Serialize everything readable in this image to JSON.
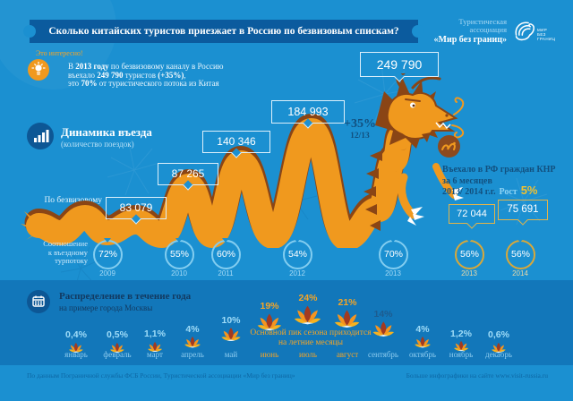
{
  "header": {
    "title": "Сколько китайских туристов приезжает в Россию по безвизовым спискам?",
    "logo": {
      "line1": "Туристическая",
      "line2": "ассоциация",
      "line3": "«Мир без границ»",
      "mark_lines": [
        "МИР",
        "БЕЗ",
        "ГРАНИЦ"
      ]
    }
  },
  "fact": {
    "label": "Это интересно!",
    "lines": [
      [
        {
          "t": "В "
        },
        {
          "t": "2013 году",
          "b": true
        },
        {
          "t": " по безвизовому каналу в Россию"
        }
      ],
      [
        {
          "t": "въехало "
        },
        {
          "t": "249 790",
          "b": true
        },
        {
          "t": " туристов "
        },
        {
          "t": "(+35%)",
          "b": true
        },
        {
          "t": ","
        }
      ],
      [
        {
          "t": "это "
        },
        {
          "t": "70%",
          "b": true
        },
        {
          "t": " от туристического потока из Китая"
        }
      ]
    ]
  },
  "dynamics": {
    "title": "Динамика въезда",
    "subtitle": "(количество поездок)",
    "channel_label_lines": [
      "По безвизовому",
      "каналу"
    ],
    "callouts": [
      {
        "value": "83 079"
      },
      {
        "value": "87 265"
      },
      {
        "value": "140 346"
      },
      {
        "value": "184 993"
      },
      {
        "value": "249 790"
      }
    ],
    "growth": {
      "value": "+35%",
      "period": "12/13"
    }
  },
  "knr": {
    "lines": [
      "Въехало в РФ граждан КНР",
      "за 6 месяцев",
      "2013/ 2014 г.г."
    ],
    "growth_label": "Рост",
    "growth_value": "5%",
    "boxes": [
      {
        "value": "72 044"
      },
      {
        "value": "75 691"
      }
    ]
  },
  "ratio": {
    "label_lines": [
      "Соотношение",
      "к въездному",
      "турпотоку"
    ],
    "items": [
      {
        "percent": "72%",
        "year": "2009",
        "style": "blue"
      },
      {
        "percent": "55%",
        "year": "2010",
        "style": "blue"
      },
      {
        "percent": "60%",
        "year": "2011",
        "style": "blue"
      },
      {
        "percent": "54%",
        "year": "2012",
        "style": "blue"
      },
      {
        "percent": "70%",
        "year": "2013",
        "style": "blue"
      },
      {
        "percent": "56%",
        "year": "2013",
        "style": "yellow"
      },
      {
        "percent": "56%",
        "year": "2014",
        "style": "yellow"
      }
    ]
  },
  "seasonal": {
    "title": "Распределение в течение года",
    "subtitle": "на примере города Москвы",
    "peak_note_lines": [
      "Основной пик сезона приходится",
      "на летние месяцы"
    ],
    "months": [
      {
        "percent": "0,4%",
        "pct": 0.4,
        "month": "январь",
        "style": "normal"
      },
      {
        "percent": "0,5%",
        "pct": 0.5,
        "month": "февраль",
        "style": "normal"
      },
      {
        "percent": "1,1%",
        "pct": 1.1,
        "month": "март",
        "style": "normal"
      },
      {
        "percent": "4%",
        "pct": 4,
        "month": "апрель",
        "style": "normal"
      },
      {
        "percent": "10%",
        "pct": 10,
        "month": "май",
        "style": "normal"
      },
      {
        "percent": "19%",
        "pct": 19,
        "month": "июнь",
        "style": "summer"
      },
      {
        "percent": "24%",
        "pct": 24,
        "month": "июль",
        "style": "summer"
      },
      {
        "percent": "21%",
        "pct": 21,
        "month": "август",
        "style": "summer"
      },
      {
        "percent": "14%",
        "pct": 14,
        "month": "сентябрь",
        "style": "dark"
      },
      {
        "percent": "4%",
        "pct": 4,
        "month": "октябрь",
        "style": "normal"
      },
      {
        "percent": "1,2%",
        "pct": 1.2,
        "month": "ноябрь",
        "style": "normal"
      },
      {
        "percent": "0,6%",
        "pct": 0.6,
        "month": "декабрь",
        "style": "normal"
      }
    ]
  },
  "footer": {
    "source": "По данным Пограничной службы ФСБ России, Туристической ассоциации «Мир без границ»",
    "more": "Больше инфографики на сайте www.visit-russia.ru"
  },
  "colors": {
    "background": "#1b90d1",
    "band": "#1277ba",
    "ribbon": "#0b5b9e",
    "dragon_orange": "#f0991e",
    "dragon_brown": "#8a4515",
    "accent_yellow": "#e2b44a",
    "accent_orange": "#f6a525",
    "navy_text": "#12507f",
    "light_blue_text": "#9fdcf8"
  },
  "chart_data": [
    {
      "type": "line",
      "title": "Динамика въезда (количество поездок) по безвизовому каналу",
      "categories": [
        "2009",
        "2010",
        "2011",
        "2012",
        "2013"
      ],
      "values": [
        83079,
        87265,
        140346,
        184993,
        249790
      ],
      "annotations": [
        "+35% 12/13"
      ]
    },
    {
      "type": "bar",
      "title": "Соотношение к въездному турпотоку",
      "categories": [
        "2009",
        "2010",
        "2011",
        "2012",
        "2013",
        "2013 (6 мес)",
        "2014 (6 мес)"
      ],
      "values": [
        72,
        55,
        60,
        54,
        70,
        56,
        56
      ],
      "unit": "%"
    },
    {
      "type": "bar",
      "title": "Въехало в РФ граждан КНР за 6 месяцев 2013/2014 г.г.",
      "categories": [
        "2013",
        "2014"
      ],
      "values": [
        72044,
        75691
      ],
      "annotations": [
        "Рост 5%"
      ]
    },
    {
      "type": "bar",
      "title": "Распределение в течение года (на примере города Москвы)",
      "categories": [
        "январь",
        "февраль",
        "март",
        "апрель",
        "май",
        "июнь",
        "июль",
        "август",
        "сентябрь",
        "октябрь",
        "ноябрь",
        "декабрь"
      ],
      "values": [
        0.4,
        0.5,
        1.1,
        4,
        10,
        19,
        24,
        21,
        14,
        4,
        1.2,
        0.6
      ],
      "unit": "%",
      "annotations": [
        "Основной пик сезона приходится на летние месяцы"
      ]
    }
  ]
}
